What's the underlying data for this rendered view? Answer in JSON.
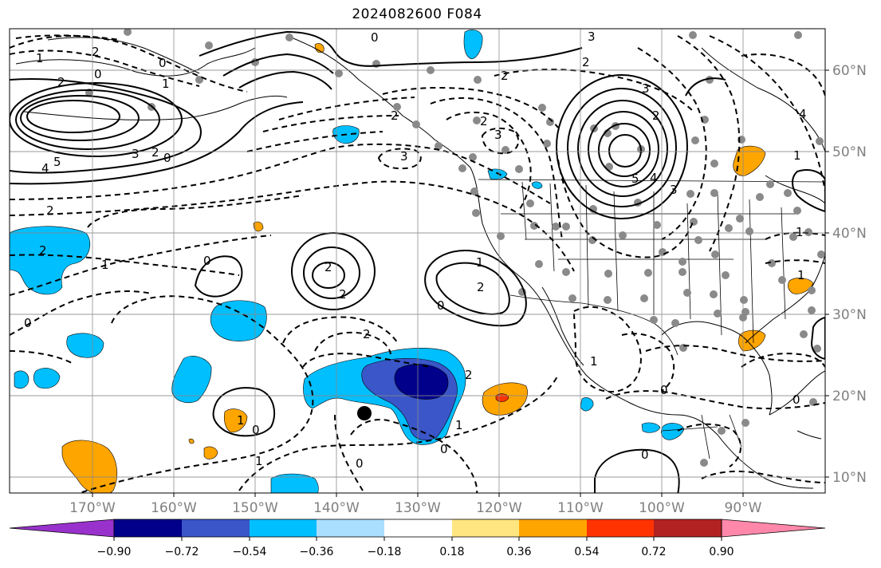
{
  "title": "2024082600 F084",
  "longitude_labels": [
    "170°W",
    "160°W",
    "150°W",
    "140°W",
    "130°W",
    "120°W",
    "110°W",
    "100°W",
    "90°W"
  ],
  "latitude_labels": [
    "60°N",
    "50°N",
    "40°N",
    "30°N",
    "20°N",
    "10°N"
  ],
  "colorbar": {
    "colors": [
      "#9932cc",
      "#00008b",
      "#3a56c8",
      "#00bfff",
      "#aadfff",
      "#ffffff",
      "#ffe680",
      "#ffa500",
      "#ff3300",
      "#b22222",
      "#ff88aa"
    ],
    "tick_labels": [
      "−0.90",
      "−0.72",
      "−0.54",
      "−0.36",
      "−0.18",
      "0.18",
      "0.36",
      "0.54",
      "0.72",
      "0.90"
    ]
  },
  "contour_labels": [
    "0",
    "3",
    "2",
    "1",
    "2",
    "0",
    "0",
    "2",
    "2",
    "3",
    "1",
    "2",
    "5",
    "4",
    "3",
    "2",
    "0",
    "3",
    "3",
    "2",
    "1",
    "4",
    "2",
    "5",
    "4",
    "3",
    "1",
    "2",
    "2",
    "1",
    "0",
    "2",
    "2",
    "2",
    "0",
    "0",
    "2",
    "1",
    "2",
    "1",
    "0",
    "1",
    "0",
    "0",
    "0",
    "0",
    "1",
    "1",
    "0",
    "1"
  ]
}
